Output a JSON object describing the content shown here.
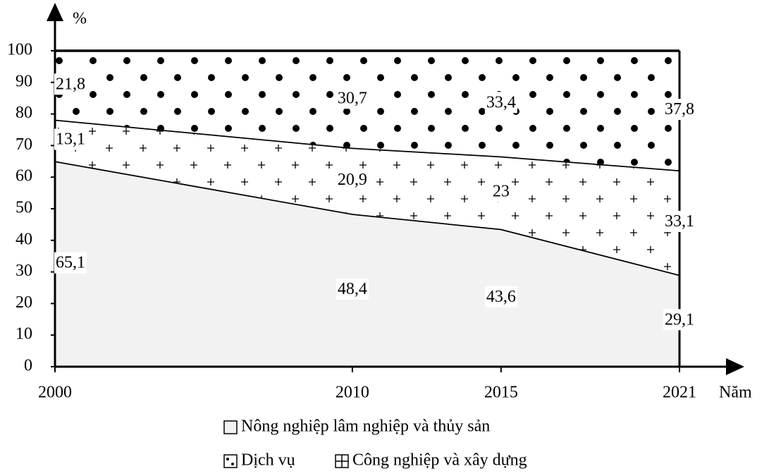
{
  "chart_data": {
    "type": "stacked_area",
    "x": [
      2000,
      2010,
      2015,
      2021
    ],
    "xlim": [
      2000,
      2021
    ],
    "xticks": [
      2000,
      2010,
      2015,
      2021
    ],
    "ylim": [
      0,
      100
    ],
    "yticks": [
      0,
      10,
      20,
      30,
      40,
      50,
      60,
      70,
      80,
      90,
      100
    ],
    "x_label": "Năm",
    "y_label": "%",
    "series": [
      {
        "name": "Nông nghiệp lâm nghiệp và thủy sản",
        "color": "#f2f2f2",
        "pattern": "none",
        "values": [
          65.1,
          48.4,
          43.6,
          29.1
        ],
        "value_labels": [
          "65,1",
          "48,4",
          "43,6",
          "29,1"
        ]
      },
      {
        "name": "Công nghiệp và xây dựng",
        "color": "#ffffff",
        "pattern": "plus",
        "values": [
          13.1,
          20.9,
          23,
          33.1
        ],
        "value_labels": [
          "13,1",
          "20,9",
          "23",
          "33,1"
        ]
      },
      {
        "name": "Dịch vụ",
        "color": "#ffffff",
        "pattern": "dots",
        "values": [
          21.8,
          30.7,
          33.4,
          37.8
        ],
        "value_labels": [
          "21,8",
          "30,7",
          "33,4",
          "37,8"
        ]
      }
    ]
  }
}
